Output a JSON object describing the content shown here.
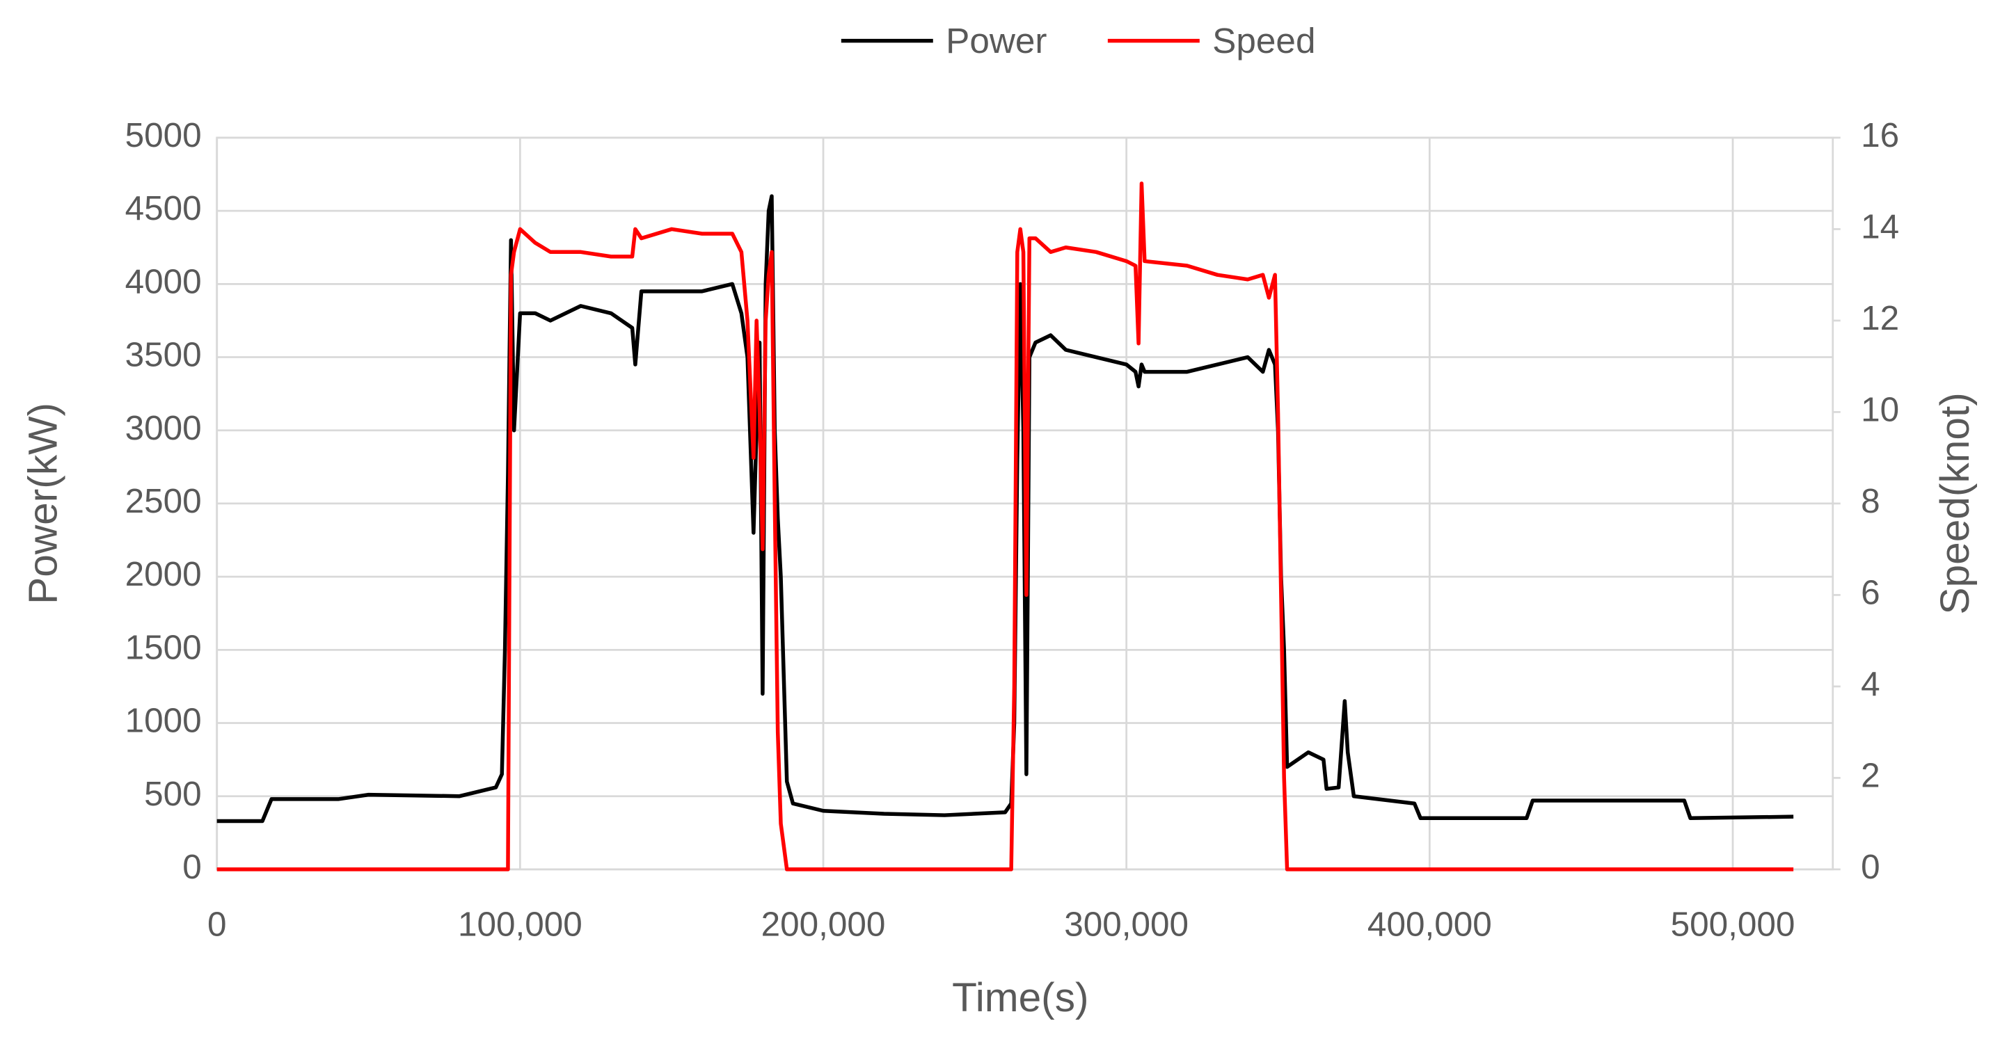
{
  "chart_data": {
    "type": "line",
    "x_label": "Time(s)",
    "y_label": "Power(kW)",
    "y2_label": "Speed(knot)",
    "x": [
      0,
      15000,
      18000,
      40000,
      50000,
      80000,
      92000,
      94000,
      95000,
      96000,
      97000,
      98000,
      100000,
      105000,
      110000,
      120000,
      130000,
      137000,
      138000,
      140000,
      150000,
      160000,
      170000,
      173000,
      175000,
      177000,
      178000,
      179000,
      180000,
      181000,
      182000,
      183000,
      184000,
      185000,
      186000,
      188000,
      190000,
      200000,
      220000,
      240000,
      260000,
      262000,
      263000,
      264000,
      265000,
      266000,
      267000,
      268000,
      270000,
      275000,
      280000,
      290000,
      300000,
      303000,
      304000,
      305000,
      306000,
      320000,
      330000,
      340000,
      345000,
      347000,
      349000,
      350000,
      351000,
      352000,
      353000,
      360000,
      365000,
      366000,
      370000,
      372000,
      373000,
      375000,
      395000,
      397000,
      432000,
      434000,
      484000,
      486000,
      520000
    ],
    "series": [
      {
        "name": "Power",
        "color": "#000000",
        "axis": "y",
        "values": [
          330,
          330,
          480,
          480,
          510,
          500,
          560,
          650,
          1500,
          2700,
          4300,
          3000,
          3800,
          3800,
          3750,
          3850,
          3800,
          3700,
          3450,
          3950,
          3950,
          3950,
          4000,
          3800,
          3500,
          2300,
          3000,
          3600,
          1200,
          4000,
          4500,
          4600,
          3000,
          2400,
          2000,
          600,
          450,
          400,
          380,
          370,
          390,
          450,
          1000,
          2800,
          4000,
          3000,
          650,
          3500,
          3600,
          3650,
          3550,
          3500,
          3450,
          3400,
          3300,
          3450,
          3400,
          3400,
          3450,
          3500,
          3400,
          3550,
          3450,
          3000,
          2000,
          1500,
          700,
          800,
          750,
          550,
          560,
          1150,
          800,
          500,
          450,
          350,
          350,
          470,
          470,
          350,
          360
        ]
      },
      {
        "name": "Speed",
        "color": "#ff0000",
        "axis": "y2",
        "values": [
          0,
          0,
          0,
          0,
          0,
          0,
          0,
          0,
          0,
          0,
          13,
          13.5,
          14,
          13.7,
          13.5,
          13.5,
          13.4,
          13.4,
          14,
          13.8,
          14,
          13.9,
          13.9,
          13.5,
          12,
          9,
          12,
          10,
          7,
          12,
          13,
          13.5,
          8,
          3,
          1,
          0,
          0,
          0,
          0,
          0,
          0,
          0,
          4,
          13.5,
          14,
          13.5,
          6,
          13.8,
          13.8,
          13.5,
          13.6,
          13.5,
          13.3,
          13.2,
          11.5,
          15,
          13.3,
          13.2,
          13,
          12.9,
          13,
          12.5,
          13,
          10,
          6,
          2,
          0,
          0,
          0,
          0,
          0,
          0,
          0,
          0,
          0,
          0,
          0,
          0,
          0,
          0,
          0
        ]
      }
    ],
    "xlim": [
      0,
      533000
    ],
    "xticks": [
      0,
      {
        "value": 100000,
        "label": "100,000"
      },
      {
        "value": 200000,
        "label": "200,000"
      },
      {
        "value": 300000,
        "label": "300,000"
      },
      {
        "value": 400000,
        "label": "400,000"
      },
      {
        "value": 500000,
        "label": "500,000"
      }
    ],
    "ylim": [
      0,
      5000
    ],
    "yticks": [
      0,
      500,
      1000,
      1500,
      2000,
      2500,
      3000,
      3500,
      4000,
      4500,
      5000
    ],
    "y2lim": [
      0,
      16
    ],
    "y2ticks": [
      0,
      2,
      4,
      6,
      8,
      10,
      12,
      14,
      16
    ],
    "grid": true,
    "legend": "top"
  }
}
